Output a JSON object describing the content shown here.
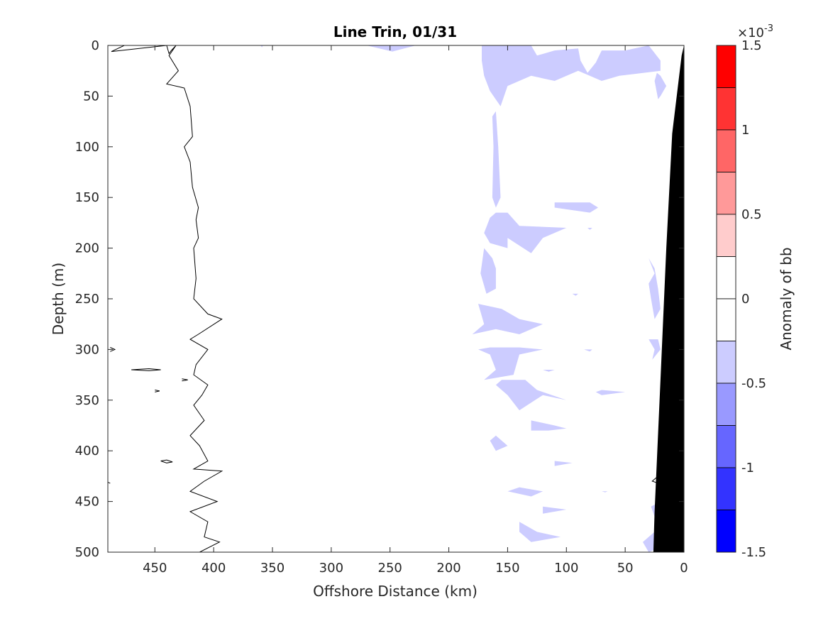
{
  "chart_data": {
    "type": "contour",
    "title": "Line Trin, 01/31",
    "xlabel": "Offshore Distance (km)",
    "ylabel": "Depth (m)",
    "xlim": [
      490,
      0
    ],
    "ylim": [
      0,
      500
    ],
    "x_reversed": true,
    "y_reversed": true,
    "x_ticks": [
      450,
      400,
      350,
      300,
      250,
      200,
      150,
      100,
      50,
      0
    ],
    "y_ticks": [
      0,
      50,
      100,
      150,
      200,
      250,
      300,
      350,
      400,
      450,
      500
    ],
    "colorbar": {
      "label": "Anomaly of bb",
      "exponent_label": "×10",
      "exponent_power": "-3",
      "range": [
        -1.5,
        1.5
      ],
      "tick_values": [
        1.5,
        1,
        0.5,
        0,
        -0.5,
        -1,
        -1.5
      ],
      "tick_labels": [
        "1.5",
        "1",
        "0.5",
        "0",
        "-0.5",
        "-1",
        "-1.5"
      ],
      "levels": [
        {
          "lo": 1.25,
          "hi": 1.5,
          "color": "#ff0000"
        },
        {
          "lo": 1.0,
          "hi": 1.25,
          "color": "#ff3333"
        },
        {
          "lo": 0.75,
          "hi": 1.0,
          "color": "#ff6666"
        },
        {
          "lo": 0.5,
          "hi": 0.75,
          "color": "#ff9999"
        },
        {
          "lo": 0.25,
          "hi": 0.5,
          "color": "#ffcccc"
        },
        {
          "lo": 0.0,
          "hi": 0.25,
          "color": "#ffffff"
        },
        {
          "lo": -0.25,
          "hi": 0.0,
          "color": "#ffffff"
        },
        {
          "lo": -0.5,
          "hi": -0.25,
          "color": "#ccccff"
        },
        {
          "lo": -0.75,
          "hi": -0.5,
          "color": "#9999ff"
        },
        {
          "lo": -1.0,
          "hi": -0.75,
          "color": "#6666ff"
        },
        {
          "lo": -1.25,
          "hi": -1.0,
          "color": "#3333ff"
        },
        {
          "lo": -1.5,
          "hi": -1.25,
          "color": "#0000ff"
        }
      ]
    },
    "contour_line_color": "#000000",
    "bathymetry_color": "#000000",
    "zero_contour": [
      [
        476,
        0
      ],
      [
        485,
        5
      ],
      [
        487,
        6
      ],
      [
        440,
        0
      ],
      [
        438,
        8
      ],
      [
        436,
        5
      ],
      [
        432,
        0
      ],
      [
        438,
        10
      ],
      [
        430,
        25
      ],
      [
        440,
        38
      ],
      [
        425,
        42
      ],
      [
        420,
        60
      ],
      [
        418,
        90
      ],
      [
        425,
        100
      ],
      [
        420,
        115
      ],
      [
        418,
        140
      ],
      [
        413,
        160
      ],
      [
        415,
        172
      ],
      [
        413,
        190
      ],
      [
        417,
        200
      ],
      [
        415,
        230
      ],
      [
        417,
        250
      ],
      [
        405,
        265
      ],
      [
        393,
        270
      ],
      [
        413,
        285
      ],
      [
        420,
        290
      ],
      [
        405,
        300
      ],
      [
        415,
        315
      ],
      [
        417,
        325
      ],
      [
        405,
        335
      ],
      [
        410,
        345
      ],
      [
        417,
        355
      ],
      [
        408,
        370
      ],
      [
        420,
        385
      ],
      [
        412,
        395
      ],
      [
        405,
        410
      ],
      [
        417,
        418
      ],
      [
        393,
        420
      ],
      [
        408,
        430
      ],
      [
        420,
        440
      ],
      [
        397,
        450
      ],
      [
        420,
        460
      ],
      [
        405,
        470
      ],
      [
        408,
        485
      ],
      [
        395,
        490
      ],
      [
        412,
        500
      ]
    ],
    "small_zero_contours": [
      [
        [
          488,
          298
        ],
        [
          484,
          300
        ],
        [
          488,
          302
        ]
      ],
      [
        [
          470,
          320
        ],
        [
          455,
          319
        ],
        [
          445,
          320
        ],
        [
          455,
          321
        ],
        [
          470,
          320
        ]
      ],
      [
        [
          427,
          329
        ],
        [
          422,
          330
        ],
        [
          427,
          331
        ]
      ],
      [
        [
          450,
          340
        ],
        [
          446,
          341
        ],
        [
          450,
          342
        ]
      ],
      [
        [
          445,
          410
        ],
        [
          440,
          409
        ],
        [
          435,
          411
        ],
        [
          440,
          412
        ],
        [
          445,
          410
        ]
      ],
      [
        [
          488,
          432
        ],
        [
          490,
          431
        ],
        [
          490,
          433
        ]
      ],
      [
        [
          22,
          425
        ],
        [
          27,
          430
        ],
        [
          22,
          432
        ]
      ]
    ],
    "negative_anomaly_patches": [
      [
        [
          270,
          0
        ],
        [
          228,
          0
        ],
        [
          248,
          6
        ]
      ],
      [
        [
          360,
          0
        ],
        [
          358,
          0
        ],
        [
          359,
          2
        ]
      ],
      [
        [
          172,
          0
        ],
        [
          130,
          0
        ],
        [
          125,
          10
        ],
        [
          110,
          5
        ],
        [
          90,
          3
        ],
        [
          88,
          15
        ],
        [
          82,
          27
        ],
        [
          75,
          17
        ],
        [
          70,
          5
        ],
        [
          50,
          5
        ],
        [
          30,
          0
        ],
        [
          20,
          15
        ],
        [
          20,
          25
        ],
        [
          55,
          30
        ],
        [
          70,
          35
        ],
        [
          90,
          25
        ],
        [
          110,
          35
        ],
        [
          130,
          30
        ],
        [
          150,
          40
        ],
        [
          156,
          60
        ],
        [
          165,
          45
        ],
        [
          170,
          30
        ],
        [
          172,
          15
        ]
      ],
      [
        [
          23,
          27
        ],
        [
          25,
          35
        ],
        [
          22,
          53
        ],
        [
          20,
          50
        ],
        [
          15,
          40
        ],
        [
          20,
          30
        ]
      ],
      [
        [
          160,
          65
        ],
        [
          158,
          100
        ],
        [
          156,
          150
        ],
        [
          160,
          160
        ],
        [
          163,
          150
        ],
        [
          162,
          100
        ],
        [
          163,
          70
        ]
      ],
      [
        [
          110,
          155
        ],
        [
          80,
          155
        ],
        [
          73,
          160
        ],
        [
          80,
          165
        ],
        [
          110,
          160
        ]
      ],
      [
        [
          165,
          170
        ],
        [
          170,
          185
        ],
        [
          165,
          195
        ],
        [
          150,
          200
        ],
        [
          150,
          190
        ],
        [
          130,
          205
        ],
        [
          120,
          190
        ],
        [
          100,
          180
        ],
        [
          140,
          178
        ],
        [
          150,
          165
        ],
        [
          160,
          165
        ]
      ],
      [
        [
          82,
          180
        ],
        [
          78,
          180
        ],
        [
          80,
          182
        ]
      ],
      [
        [
          170,
          200
        ],
        [
          173,
          225
        ],
        [
          168,
          245
        ],
        [
          160,
          240
        ],
        [
          160,
          220
        ],
        [
          163,
          210
        ]
      ],
      [
        [
          30,
          210
        ],
        [
          25,
          225
        ],
        [
          30,
          235
        ],
        [
          28,
          250
        ],
        [
          25,
          270
        ],
        [
          20,
          260
        ],
        [
          22,
          240
        ],
        [
          25,
          220
        ]
      ],
      [
        [
          95,
          245
        ],
        [
          90,
          245
        ],
        [
          92,
          247
        ]
      ],
      [
        [
          175,
          255
        ],
        [
          170,
          275
        ],
        [
          180,
          285
        ],
        [
          160,
          280
        ],
        [
          140,
          285
        ],
        [
          120,
          275
        ],
        [
          140,
          270
        ],
        [
          155,
          260
        ]
      ],
      [
        [
          30,
          290
        ],
        [
          25,
          300
        ],
        [
          27,
          310
        ],
        [
          20,
          300
        ],
        [
          22,
          290
        ]
      ],
      [
        [
          175,
          300
        ],
        [
          165,
          305
        ],
        [
          160,
          320
        ],
        [
          170,
          330
        ],
        [
          145,
          325
        ],
        [
          140,
          305
        ],
        [
          120,
          300
        ],
        [
          140,
          298
        ],
        [
          165,
          298
        ]
      ],
      [
        [
          160,
          335
        ],
        [
          150,
          345
        ],
        [
          140,
          360
        ],
        [
          120,
          345
        ],
        [
          100,
          350
        ],
        [
          125,
          340
        ],
        [
          135,
          330
        ],
        [
          155,
          330
        ]
      ],
      [
        [
          120,
          320
        ],
        [
          110,
          320
        ],
        [
          115,
          322
        ]
      ],
      [
        [
          85,
          300
        ],
        [
          78,
          300
        ],
        [
          80,
          302
        ]
      ],
      [
        [
          70,
          340
        ],
        [
          50,
          342
        ],
        [
          70,
          345
        ],
        [
          75,
          342
        ]
      ],
      [
        [
          130,
          370
        ],
        [
          110,
          375
        ],
        [
          100,
          378
        ],
        [
          115,
          380
        ],
        [
          130,
          380
        ]
      ],
      [
        [
          165,
          390
        ],
        [
          160,
          400
        ],
        [
          150,
          395
        ],
        [
          160,
          385
        ]
      ],
      [
        [
          110,
          410
        ],
        [
          95,
          412
        ],
        [
          110,
          415
        ]
      ],
      [
        [
          140,
          436
        ],
        [
          120,
          440
        ],
        [
          130,
          445
        ],
        [
          150,
          440
        ]
      ],
      [
        [
          70,
          440
        ],
        [
          65,
          440
        ],
        [
          67,
          441
        ]
      ],
      [
        [
          120,
          455
        ],
        [
          100,
          458
        ],
        [
          120,
          462
        ]
      ],
      [
        [
          140,
          470
        ],
        [
          125,
          480
        ],
        [
          105,
          485
        ],
        [
          130,
          490
        ],
        [
          140,
          480
        ]
      ],
      [
        [
          20,
          450
        ],
        [
          28,
          455
        ],
        [
          25,
          465
        ],
        [
          20,
          470
        ]
      ],
      [
        [
          25,
          480
        ],
        [
          35,
          490
        ],
        [
          30,
          500
        ],
        [
          20,
          495
        ]
      ]
    ],
    "bathymetry_polygon": [
      [
        0,
        0
      ],
      [
        2,
        10
      ],
      [
        10,
        87
      ],
      [
        15,
        200
      ],
      [
        20,
        330
      ],
      [
        25,
        460
      ],
      [
        26,
        500
      ],
      [
        0,
        500
      ]
    ]
  }
}
